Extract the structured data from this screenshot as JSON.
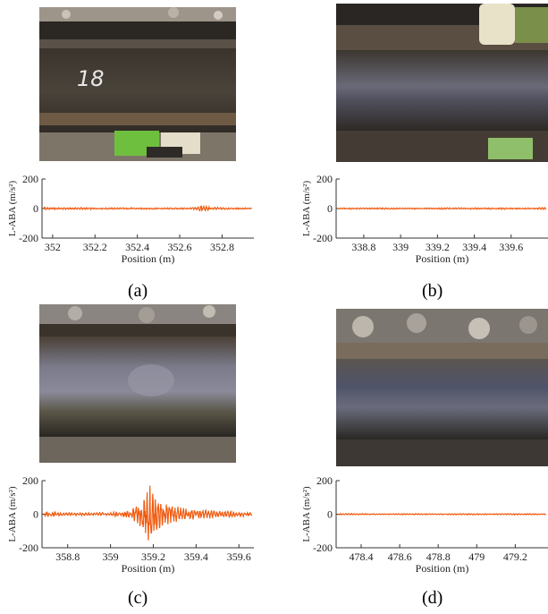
{
  "figure": {
    "captions": [
      "(a)",
      "(b)",
      "(c)",
      "(d)"
    ],
    "panels": [
      {
        "id": "a",
        "photo": {
          "mark_text": "18",
          "clip_color": "#6fbf3f"
        },
        "ylabel": "L-ABA (m/s²)",
        "xlabel": "Position (m)",
        "yticks": [
          "200",
          "0",
          "-200"
        ],
        "xticks": [
          "352",
          "352.2",
          "352.4",
          "352.6",
          "352.8"
        ]
      },
      {
        "id": "b",
        "photo": {
          "clip_color": "#e8e2c8"
        },
        "ylabel": "L-ABA (m/s²)",
        "xlabel": "Position (m)",
        "yticks": [
          "200",
          "0",
          "-200"
        ],
        "xticks": [
          "338.8",
          "339",
          "339.2",
          "339.4",
          "339.6"
        ]
      },
      {
        "id": "c",
        "photo": {},
        "ylabel": "L-ABA (m/s²)",
        "xlabel": "Position (m)",
        "yticks": [
          "200",
          "0",
          "-200"
        ],
        "xticks": [
          "358.8",
          "359",
          "359.2",
          "359.4",
          "359.6"
        ]
      },
      {
        "id": "d",
        "photo": {},
        "ylabel": "L-ABA (m/s²)",
        "xlabel": "Position (m)",
        "yticks": [
          "200",
          "0",
          "-200"
        ],
        "xticks": [
          "478.4",
          "478.6",
          "478.8",
          "479",
          "479.2"
        ]
      }
    ]
  },
  "chart_data": [
    {
      "type": "line",
      "panel": "a",
      "xlabel": "Position (m)",
      "ylabel": "L-ABA (m/s²)",
      "xlim": [
        351.95,
        352.95
      ],
      "ylim": [
        -200,
        200
      ],
      "series": [
        {
          "color": "#f05a0f",
          "x": [
            351.96,
            352.0,
            352.05,
            352.1,
            352.15,
            352.2,
            352.25,
            352.3,
            352.35,
            352.4,
            352.45,
            352.5,
            352.55,
            352.6,
            352.65,
            352.68,
            352.7,
            352.72,
            352.75,
            352.8,
            352.85,
            352.9,
            352.94
          ],
          "y": [
            15,
            -8,
            6,
            -7,
            8,
            -6,
            5,
            -6,
            7,
            -5,
            6,
            -5,
            5,
            -6,
            7,
            -12,
            25,
            -18,
            10,
            -7,
            6,
            -5,
            4
          ]
        }
      ]
    },
    {
      "type": "line",
      "panel": "b",
      "xlabel": "Position (m)",
      "ylabel": "L-ABA (m/s²)",
      "xlim": [
        338.65,
        339.8
      ],
      "ylim": [
        -200,
        200
      ],
      "series": [
        {
          "color": "#f05a0f",
          "x": [
            338.66,
            338.75,
            338.85,
            338.95,
            339.05,
            339.15,
            339.25,
            339.35,
            339.45,
            339.55,
            339.65,
            339.75,
            339.79
          ],
          "y": [
            6,
            -5,
            5,
            -6,
            4,
            -5,
            6,
            -5,
            5,
            -6,
            5,
            -7,
            8
          ]
        }
      ]
    },
    {
      "type": "line",
      "panel": "c",
      "xlabel": "Position (m)",
      "ylabel": "L-ABA (m/s²)",
      "xlim": [
        358.68,
        359.67
      ],
      "ylim": [
        -200,
        200
      ],
      "series": [
        {
          "color": "#f05a0f",
          "x": [
            358.69,
            358.75,
            358.85,
            358.95,
            359.05,
            359.1,
            359.12,
            359.14,
            359.16,
            359.18,
            359.19,
            359.2,
            359.22,
            359.24,
            359.26,
            359.3,
            359.35,
            359.4,
            359.45,
            359.5,
            359.55,
            359.6,
            359.66
          ],
          "y": [
            18,
            -12,
            8,
            -10,
            15,
            -25,
            60,
            -90,
            140,
            -170,
            180,
            -150,
            110,
            -80,
            70,
            -50,
            40,
            -35,
            30,
            -20,
            22,
            -15,
            12
          ]
        }
      ]
    },
    {
      "type": "line",
      "panel": "d",
      "xlabel": "Position (m)",
      "ylabel": "L-ABA (m/s²)",
      "xlim": [
        478.27,
        479.37
      ],
      "ylim": [
        -200,
        200
      ],
      "series": [
        {
          "color": "#f05a0f",
          "x": [
            478.28,
            478.4,
            478.5,
            478.6,
            478.7,
            478.8,
            478.9,
            479.0,
            479.1,
            479.2,
            479.3,
            479.36
          ],
          "y": [
            4,
            -4,
            3,
            -4,
            4,
            -3,
            4,
            -4,
            3,
            -4,
            4,
            -3
          ]
        }
      ]
    }
  ]
}
